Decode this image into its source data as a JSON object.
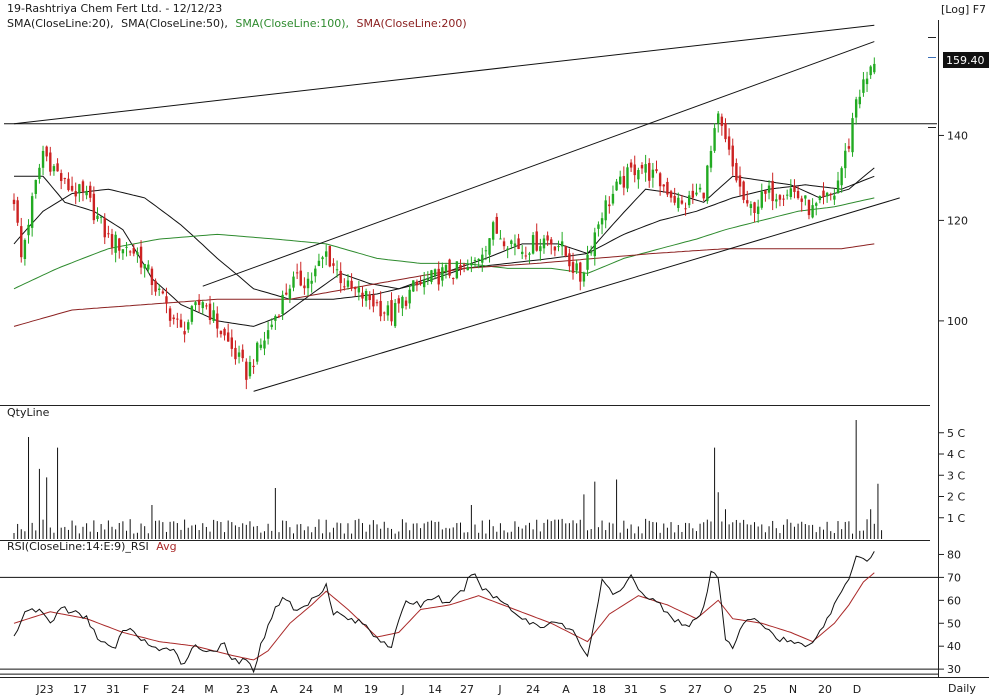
{
  "header": {
    "title": "19-Rashtriya Chem Fert Ltd. - 12/12/23",
    "scale_label": "[Log] F7",
    "sma_legend": [
      {
        "label": "SMA(CloseLine:20),",
        "color": "#1a1a1a"
      },
      {
        "label": "SMA(CloseLine:50),",
        "color": "#1a1a1a"
      },
      {
        "label": "SMA(CloseLine:100),",
        "color": "#2e8b2e"
      },
      {
        "label": "SMA(CloseLine:200)",
        "color": "#8b2020"
      }
    ]
  },
  "last_price_badge": "159.40",
  "footer_label": "Daily",
  "colors": {
    "up": "#22aa22",
    "down": "#cc2222",
    "sma20": "#111111",
    "sma50": "#111111",
    "sma100": "#2e8b2e",
    "sma200": "#8b2020",
    "rsi": "#111111",
    "rsi_avg": "#aa2a2a",
    "volume": "#111111"
  },
  "chart_data": [
    {
      "type": "candlestick",
      "title": "19-Rashtriya Chem Fert Ltd. - 12/12/23",
      "y_scale": "log",
      "ylim": [
        86,
        172
      ],
      "y_ticks": [
        100,
        120,
        140
      ],
      "x_tick_labels": [
        "J23",
        "17",
        "31",
        "F",
        "24",
        "M",
        "23",
        "A",
        "24",
        "M",
        "19",
        "J",
        "14",
        "27",
        "J",
        "24",
        "A",
        "18",
        "31",
        "S",
        "27",
        "O",
        "25",
        "N",
        "20",
        "D"
      ],
      "last_close": 159.4,
      "keypoints": [
        {
          "i": 0,
          "p": 125
        },
        {
          "i": 2,
          "p": 112
        },
        {
          "i": 8,
          "p": 136
        },
        {
          "i": 14,
          "p": 128
        },
        {
          "i": 20,
          "p": 125
        },
        {
          "i": 26,
          "p": 116
        },
        {
          "i": 34,
          "p": 113
        },
        {
          "i": 40,
          "p": 105
        },
        {
          "i": 46,
          "p": 98
        },
        {
          "i": 52,
          "p": 104
        },
        {
          "i": 58,
          "p": 97
        },
        {
          "i": 64,
          "p": 91
        },
        {
          "i": 70,
          "p": 98
        },
        {
          "i": 76,
          "p": 107
        },
        {
          "i": 82,
          "p": 108
        },
        {
          "i": 86,
          "p": 113
        },
        {
          "i": 92,
          "p": 106
        },
        {
          "i": 98,
          "p": 104
        },
        {
          "i": 104,
          "p": 101
        },
        {
          "i": 110,
          "p": 106
        },
        {
          "i": 118,
          "p": 109
        },
        {
          "i": 126,
          "p": 110
        },
        {
          "i": 132,
          "p": 118
        },
        {
          "i": 140,
          "p": 114
        },
        {
          "i": 146,
          "p": 116
        },
        {
          "i": 150,
          "p": 115
        },
        {
          "i": 156,
          "p": 108
        },
        {
          "i": 162,
          "p": 122
        },
        {
          "i": 166,
          "p": 127
        },
        {
          "i": 172,
          "p": 133
        },
        {
          "i": 176,
          "p": 130
        },
        {
          "i": 180,
          "p": 127
        },
        {
          "i": 184,
          "p": 123
        },
        {
          "i": 190,
          "p": 127
        },
        {
          "i": 194,
          "p": 144
        },
        {
          "i": 198,
          "p": 132
        },
        {
          "i": 202,
          "p": 122
        },
        {
          "i": 208,
          "p": 126
        },
        {
          "i": 214,
          "p": 127
        },
        {
          "i": 220,
          "p": 122
        },
        {
          "i": 226,
          "p": 126
        },
        {
          "i": 230,
          "p": 138
        },
        {
          "i": 232,
          "p": 150
        },
        {
          "i": 235,
          "p": 155
        },
        {
          "i": 237,
          "p": 159.4
        }
      ],
      "overlays": [
        {
          "name": "SMA(CloseLine:20)",
          "color": "#111111",
          "points": [
            [
              0,
              130
            ],
            [
              8,
              130
            ],
            [
              14,
              124
            ],
            [
              22,
              122
            ],
            [
              30,
              118
            ],
            [
              38,
              108
            ],
            [
              46,
              103
            ],
            [
              56,
              100
            ],
            [
              66,
              99
            ],
            [
              74,
              101
            ],
            [
              82,
              105
            ],
            [
              90,
              109
            ],
            [
              98,
              107
            ],
            [
              106,
              106
            ],
            [
              114,
              108
            ],
            [
              122,
              110
            ],
            [
              130,
              112
            ],
            [
              140,
              115
            ],
            [
              150,
              115
            ],
            [
              158,
              113
            ],
            [
              166,
              120
            ],
            [
              174,
              127
            ],
            [
              182,
              126
            ],
            [
              190,
              124
            ],
            [
              198,
              130
            ],
            [
              206,
              129
            ],
            [
              214,
              128
            ],
            [
              222,
              125
            ],
            [
              230,
              127
            ],
            [
              237,
              132
            ]
          ]
        },
        {
          "name": "SMA(CloseLine:50)",
          "color": "#111111",
          "points": [
            [
              0,
              115
            ],
            [
              8,
              122
            ],
            [
              16,
              126
            ],
            [
              26,
              127
            ],
            [
              36,
              125
            ],
            [
              46,
              119
            ],
            [
              56,
              112
            ],
            [
              66,
              106
            ],
            [
              76,
              104
            ],
            [
              88,
              104
            ],
            [
              100,
              105
            ],
            [
              112,
              107
            ],
            [
              124,
              110
            ],
            [
              136,
              111
            ],
            [
              148,
              112
            ],
            [
              158,
              113
            ],
            [
              168,
              117
            ],
            [
              178,
              120
            ],
            [
              188,
              122
            ],
            [
              198,
              125
            ],
            [
              208,
              127
            ],
            [
              218,
              128
            ],
            [
              228,
              127
            ],
            [
              237,
              130
            ]
          ]
        },
        {
          "name": "SMA(CloseLine:100)",
          "color": "#2e8b2e",
          "points": [
            [
              0,
              106
            ],
            [
              12,
              110
            ],
            [
              26,
              114
            ],
            [
              40,
              116
            ],
            [
              56,
              117
            ],
            [
              72,
              116
            ],
            [
              86,
              115
            ],
            [
              100,
              112
            ],
            [
              112,
              111
            ],
            [
              124,
              111
            ],
            [
              136,
              110
            ],
            [
              148,
              110
            ],
            [
              158,
              109
            ],
            [
              168,
              112
            ],
            [
              178,
              114
            ],
            [
              188,
              116
            ],
            [
              196,
              118
            ],
            [
              206,
              120
            ],
            [
              216,
              122
            ],
            [
              226,
              123
            ],
            [
              237,
              125
            ]
          ]
        },
        {
          "name": "SMA(CloseLine:200)",
          "color": "#8b2020",
          "points": [
            [
              0,
              99
            ],
            [
              16,
              102
            ],
            [
              36,
              103
            ],
            [
              56,
              104
            ],
            [
              76,
              104
            ],
            [
              100,
              107
            ],
            [
              124,
              110
            ],
            [
              144,
              111
            ],
            [
              160,
              112
            ],
            [
              176,
              113
            ],
            [
              196,
              114
            ],
            [
              216,
              114
            ],
            [
              228,
              114
            ],
            [
              237,
              115
            ]
          ]
        }
      ],
      "annotations": [
        {
          "type": "horizontal_line",
          "value": 143
        },
        {
          "type": "trendline",
          "from": {
            "i": 0,
            "p": 143
          },
          "to": {
            "i": 237,
            "p": 171
          }
        },
        {
          "type": "trendline",
          "from": {
            "i": 52,
            "p": 106.5
          },
          "to": {
            "i": 237,
            "p": 166
          }
        },
        {
          "type": "trendline",
          "from": {
            "i": 66,
            "p": 88
          },
          "to": {
            "i": 244,
            "p": 125
          }
        }
      ]
    },
    {
      "type": "bar",
      "title": "QtyLine",
      "y_tick_labels": [
        "5 C",
        "4 C",
        "3 C",
        "2 C",
        "1 C"
      ],
      "y_ticks": [
        5,
        4,
        3,
        2,
        1
      ],
      "ylim": [
        0,
        5.6
      ],
      "spikes": [
        {
          "i": 4,
          "v": 4.8
        },
        {
          "i": 7,
          "v": 3.3
        },
        {
          "i": 9,
          "v": 2.9
        },
        {
          "i": 12,
          "v": 4.3
        },
        {
          "i": 38,
          "v": 1.6
        },
        {
          "i": 72,
          "v": 2.4
        },
        {
          "i": 126,
          "v": 1.6
        },
        {
          "i": 157,
          "v": 2.1
        },
        {
          "i": 160,
          "v": 2.7
        },
        {
          "i": 166,
          "v": 2.8
        },
        {
          "i": 193,
          "v": 4.3
        },
        {
          "i": 194,
          "v": 2.2
        },
        {
          "i": 196,
          "v": 1.4
        },
        {
          "i": 232,
          "v": 5.6
        },
        {
          "i": 236,
          "v": 1.4
        },
        {
          "i": 238,
          "v": 2.6
        }
      ]
    },
    {
      "type": "line",
      "title": "RSI(CloseLine:14:E:9)_RSI Avg",
      "series_names": [
        "RSI(CloseLine:14:E:9)_RSI",
        "Avg"
      ],
      "y_ticks": [
        80,
        70,
        60,
        50,
        40,
        30
      ],
      "ylim": [
        27,
        85
      ],
      "reference_lines": [
        70,
        30
      ],
      "rsi_points": [
        [
          0,
          44
        ],
        [
          2,
          52
        ],
        [
          4,
          55
        ],
        [
          7,
          56
        ],
        [
          10,
          50
        ],
        [
          13,
          57
        ],
        [
          16,
          55
        ],
        [
          20,
          52
        ],
        [
          24,
          42
        ],
        [
          28,
          38
        ],
        [
          30,
          48
        ],
        [
          34,
          45
        ],
        [
          40,
          37
        ],
        [
          44,
          40
        ],
        [
          46,
          32
        ],
        [
          50,
          40
        ],
        [
          54,
          38
        ],
        [
          58,
          40
        ],
        [
          60,
          34
        ],
        [
          64,
          33
        ],
        [
          66,
          30
        ],
        [
          70,
          50
        ],
        [
          74,
          62
        ],
        [
          78,
          55
        ],
        [
          82,
          60
        ],
        [
          86,
          67
        ],
        [
          88,
          55
        ],
        [
          92,
          52
        ],
        [
          96,
          50
        ],
        [
          100,
          44
        ],
        [
          104,
          40
        ],
        [
          108,
          60
        ],
        [
          112,
          58
        ],
        [
          116,
          62
        ],
        [
          120,
          58
        ],
        [
          124,
          65
        ],
        [
          126,
          72
        ],
        [
          130,
          64
        ],
        [
          136,
          58
        ],
        [
          140,
          52
        ],
        [
          146,
          48
        ],
        [
          148,
          52
        ],
        [
          154,
          46
        ],
        [
          158,
          36
        ],
        [
          162,
          68
        ],
        [
          166,
          62
        ],
        [
          170,
          70
        ],
        [
          174,
          62
        ],
        [
          178,
          58
        ],
        [
          182,
          52
        ],
        [
          186,
          48
        ],
        [
          190,
          56
        ],
        [
          192,
          72
        ],
        [
          194,
          70
        ],
        [
          196,
          44
        ],
        [
          198,
          40
        ],
        [
          202,
          52
        ],
        [
          206,
          50
        ],
        [
          210,
          44
        ],
        [
          214,
          42
        ],
        [
          218,
          40
        ],
        [
          222,
          46
        ],
        [
          226,
          58
        ],
        [
          230,
          70
        ],
        [
          232,
          80
        ],
        [
          235,
          78
        ],
        [
          237,
          81
        ]
      ],
      "avg_points": [
        [
          0,
          50
        ],
        [
          10,
          55
        ],
        [
          20,
          52
        ],
        [
          30,
          46
        ],
        [
          40,
          42
        ],
        [
          50,
          40
        ],
        [
          60,
          36
        ],
        [
          66,
          34
        ],
        [
          70,
          38
        ],
        [
          76,
          50
        ],
        [
          82,
          58
        ],
        [
          86,
          64
        ],
        [
          92,
          56
        ],
        [
          100,
          44
        ],
        [
          106,
          46
        ],
        [
          112,
          56
        ],
        [
          120,
          58
        ],
        [
          128,
          62
        ],
        [
          138,
          56
        ],
        [
          148,
          50
        ],
        [
          158,
          42
        ],
        [
          164,
          54
        ],
        [
          172,
          62
        ],
        [
          180,
          58
        ],
        [
          188,
          52
        ],
        [
          194,
          60
        ],
        [
          198,
          52
        ],
        [
          206,
          50
        ],
        [
          214,
          46
        ],
        [
          220,
          42
        ],
        [
          226,
          50
        ],
        [
          230,
          58
        ],
        [
          234,
          68
        ],
        [
          237,
          72
        ]
      ]
    }
  ]
}
